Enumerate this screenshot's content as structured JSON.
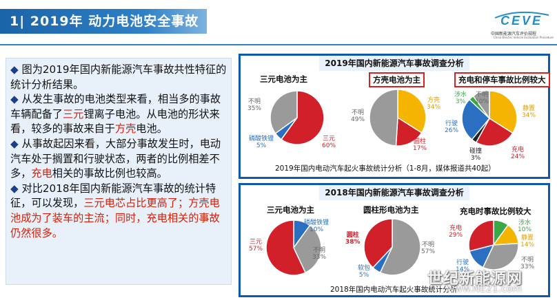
{
  "header": {
    "title": "1| 2019年 动力电池安全事故",
    "logo_text": "CEVE",
    "logo_subtitle": "中国新能源汽车评价规程",
    "logo_subtitle_en": "China Electric Vehicle Evaluation Procedure"
  },
  "left_panel": {
    "bullets": [
      {
        "marker": "◆",
        "segments": [
          {
            "text": "图为2019年国内新能源汽车事故共性特征的统计分析结果。",
            "color": ""
          }
        ]
      },
      {
        "marker": "◆",
        "segments": [
          {
            "text": "从发生事故的电池类型来看，相当多的事故车辆配备了",
            "color": ""
          },
          {
            "text": "三元",
            "color": "red"
          },
          {
            "text": "锂离子电池。从电池的形状来看，较多的事故来自于",
            "color": ""
          },
          {
            "text": "方壳",
            "color": "red"
          },
          {
            "text": "电池。",
            "color": ""
          }
        ]
      },
      {
        "marker": "◆",
        "segments": [
          {
            "text": "从事故起因来看，大部分事故发生时，电动汽车处于搁置和行驶状态，两者的比例相差不多，",
            "color": ""
          },
          {
            "text": "充电",
            "color": "red"
          },
          {
            "text": "相关的事故比例也较高。",
            "color": ""
          }
        ]
      },
      {
        "marker": "◆",
        "segments": [
          {
            "text": "对比2018年国内新能源汽车事故的统计特征，可以发现，",
            "color": ""
          },
          {
            "text": "三元电芯占比更高了；方壳电池成为了装车的主流；同时，充电相关的事故仍然很多。",
            "color": "red"
          }
        ]
      }
    ]
  },
  "panel_2019": {
    "title": "2019年国内新能源汽车事故调查分析",
    "caption": "2019年国内电动汽车起火事故统计分析（1-8月，媒体报道共40起）"
  },
  "panel_2018": {
    "title": "2018年国内新能源汽车事故调查分析",
    "caption": "2018年国内电动汽车起火事故统计分析"
  },
  "chart_data": [
    {
      "type": "pie",
      "title": "三元电池为主",
      "slices": [
        {
          "label": "三元",
          "value": 60,
          "color": "#d1202a"
        },
        {
          "label": "磷酸铁锂",
          "value": 5,
          "color": "#2a6fc2"
        },
        {
          "label": "不明",
          "value": 35,
          "color": "#9a9a9a"
        }
      ]
    },
    {
      "type": "pie",
      "title": "方壳电池为主",
      "slices": [
        {
          "label": "方壳",
          "value": 34,
          "color": "#f4b400"
        },
        {
          "label": "圆柱",
          "value": 17,
          "color": "#d1202a"
        },
        {
          "label": "不明",
          "value": 49,
          "color": "#9a9a9a"
        }
      ]
    },
    {
      "type": "pie",
      "title": "充电和停车事故比例较大",
      "slices": [
        {
          "label": "静置",
          "value": 34,
          "color": "#f4b400"
        },
        {
          "label": "充电",
          "value": 24,
          "color": "#d1202a"
        },
        {
          "label": "碰撞",
          "value": 3,
          "color": "#222222"
        },
        {
          "label": "行驶",
          "value": 26,
          "color": "#2a6fc2"
        },
        {
          "label": "涉水",
          "value": 3,
          "color": "#3aa845"
        },
        {
          "label": "不明",
          "value": 10,
          "color": "#9a9a9a"
        }
      ]
    },
    {
      "type": "pie",
      "title": "三元电池为主",
      "slices": [
        {
          "label": "磷酸铁锂",
          "value": 10,
          "color": "#2a6fc2"
        },
        {
          "label": "不明",
          "value": 33,
          "color": "#9a9a9a"
        },
        {
          "label": "三元",
          "value": 57,
          "color": "#d1202a"
        }
      ]
    },
    {
      "type": "pie",
      "title": "圆柱形电池为主",
      "slices": [
        {
          "label": "不明",
          "value": 57,
          "color": "#9a9a9a"
        },
        {
          "label": "软包",
          "value": 5,
          "color": "#2a6fc2"
        },
        {
          "label": "圆柱",
          "value": 38,
          "color": "#d1202a"
        }
      ]
    },
    {
      "type": "pie",
      "title": "充电时事故比例较大",
      "slices": [
        {
          "label": "涉水",
          "value": 10,
          "color": "#3aa845"
        },
        {
          "label": "静置",
          "value": 14,
          "color": "#f4b400"
        },
        {
          "label": "不明",
          "value": 33,
          "color": "#9a9a9a"
        },
        {
          "label": "行驶",
          "value": 14,
          "color": "#2a6fc2"
        },
        {
          "label": "充电",
          "value": 29,
          "color": "#d1202a"
        }
      ]
    }
  ],
  "watermark": {
    "line1": "世纪新能源网",
    "line2": "www.NE21.com"
  }
}
